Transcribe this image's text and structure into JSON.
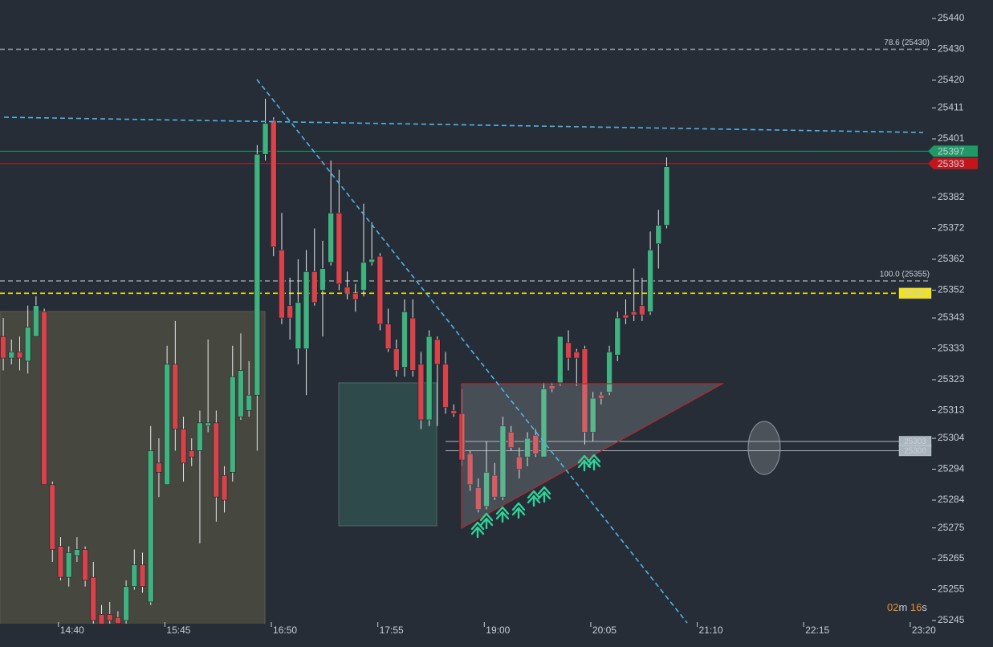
{
  "chart_data": {
    "type": "candlestick",
    "x": [
      838,
      843,
      848,
      853,
      858,
      863,
      868,
      873,
      878,
      883,
      888,
      893,
      898,
      903,
      908,
      913,
      918,
      923,
      928,
      933,
      938,
      943,
      948,
      953,
      958,
      963,
      968,
      973,
      978,
      983,
      988,
      993,
      998,
      1003,
      1008,
      1013,
      1018,
      1023,
      1028,
      1033,
      1038,
      1043,
      1048,
      1053,
      1058,
      1063,
      1068,
      1073,
      1078,
      1083,
      1088,
      1093,
      1098,
      1103,
      1108,
      1113,
      1118,
      1123,
      1128,
      1133,
      1138,
      1143,
      1148,
      1153,
      1158,
      1163,
      1168,
      1173,
      1178,
      1183,
      1188,
      1193,
      1198,
      1203,
      1208,
      1213,
      1218,
      1223,
      1228,
      1233,
      1238,
      1243
    ],
    "open": [
      25337,
      25330,
      25332,
      25329,
      25337,
      25345,
      25289,
      25269,
      25259,
      25266,
      25268,
      25259,
      25247,
      25247,
      25246,
      25245,
      25256,
      25263,
      25251,
      25296,
      25289,
      25328,
      25307,
      25300,
      25300,
      25308,
      25309,
      25292,
      25293,
      25311,
      25313,
      25318,
      25396,
      25407,
      25365,
      25347,
      25333,
      25333,
      25358,
      25352,
      25361,
      25377,
      25353,
      25351,
      25352,
      25361,
      25363,
      25341,
      25333,
      25327,
      25343,
      25328,
      25310,
      25336,
      25328,
      25313,
      25312,
      25299,
      25288,
      25282,
      25292,
      25285,
      25306,
      25298,
      25298,
      25305,
      25298,
      25321,
      25322,
      25335,
      25332,
      25333,
      25306,
      25318,
      25319,
      25331,
      25344,
      25345,
      25347,
      25345,
      25367,
      25373
    ],
    "high": [
      25343,
      25336,
      25337,
      25347,
      25350,
      25346,
      25290,
      25272,
      25269,
      25272,
      25269,
      25264,
      25250,
      25251,
      25248,
      25258,
      25268,
      25267,
      25308,
      25304,
      25334,
      25342,
      25311,
      25304,
      25313,
      25336,
      25313,
      25295,
      25334,
      25338,
      25329,
      25399,
      25414,
      25408,
      25377,
      25356,
      25362,
      25365,
      25372,
      25368,
      25394,
      25391,
      25358,
      25354,
      25380,
      25374,
      25364,
      25346,
      25336,
      25349,
      25349,
      25332,
      25339,
      25337,
      25332,
      25315,
      25320,
      25300,
      25291,
      25303,
      25296,
      25311,
      25308,
      25301,
      25306,
      25307,
      25322,
      25322,
      25337,
      25339,
      25333,
      25334,
      25319,
      25319,
      25334,
      25345,
      25349,
      25359,
      25356,
      25371,
      25378,
      25395
    ],
    "low": [
      25326,
      25328,
      25326,
      25325,
      25337,
      25289,
      25264,
      25258,
      25256,
      25264,
      25256,
      25244,
      25236,
      25244,
      25243,
      25244,
      25255,
      25254,
      25250,
      25285,
      25289,
      25300,
      25290,
      25295,
      25270,
      25306,
      25277,
      25280,
      25290,
      25310,
      25311,
      25300,
      25394,
      25363,
      25341,
      25336,
      25328,
      25318,
      25347,
      25337,
      25360,
      25352,
      25349,
      25345,
      25350,
      25360,
      25339,
      25332,
      25324,
      25324,
      25324,
      25307,
      25308,
      25308,
      25312,
      25311,
      25295,
      25287,
      25280,
      25281,
      25284,
      25284,
      25300,
      25291,
      25295,
      25298,
      25298,
      25319,
      25321,
      25326,
      25321,
      25302,
      25303,
      25315,
      25318,
      25329,
      25341,
      25342,
      25342,
      25344,
      25359,
      25372
    ],
    "close": [
      25330,
      25332,
      25330,
      25340,
      25347,
      25289,
      25268,
      25259,
      25267,
      25268,
      25258,
      25245,
      25240,
      25245,
      25244,
      25256,
      25263,
      25256,
      25300,
      25293,
      25328,
      25307,
      25296,
      25298,
      25309,
      25309,
      25285,
      25284,
      25324,
      25326,
      25318,
      25396,
      25406,
      25366,
      25343,
      25343,
      25348,
      25358,
      25348,
      25359,
      25377,
      25354,
      25351,
      25349,
      25361,
      25362,
      25341,
      25333,
      25326,
      25345,
      25326,
      25310,
      25337,
      25328,
      25314,
      25312,
      25297,
      25289,
      25281,
      25293,
      25285,
      25308,
      25301,
      25294,
      25304,
      25299,
      25320,
      25320,
      25337,
      25330,
      25330,
      25306,
      25317,
      25317,
      25332,
      25343,
      25343,
      25344,
      25344,
      25365,
      25373,
      25392
    ],
    "up_color": "#3fb27f",
    "down_color": "#d6434a",
    "xlim": [
      836,
      1404
    ],
    "ylim": [
      25245,
      25440
    ],
    "xticks": [
      {
        "value": 880,
        "label": "14:40"
      },
      {
        "value": 945,
        "label": "15:45"
      },
      {
        "value": 1010,
        "label": "16:50"
      },
      {
        "value": 1075,
        "label": "17:55"
      },
      {
        "value": 1140,
        "label": "19:00"
      },
      {
        "value": 1205,
        "label": "20:05"
      },
      {
        "value": 1270,
        "label": "21:10"
      },
      {
        "value": 1335,
        "label": "22:15"
      },
      {
        "value": 1400,
        "label": "23:20"
      }
    ],
    "yticks": [
      25440,
      25430,
      25420,
      25411,
      25401,
      25382,
      25372,
      25362,
      25352,
      25343,
      25333,
      25323,
      25313,
      25304,
      25294,
      25284,
      25275,
      25265,
      25255,
      25245
    ],
    "levels": [
      {
        "value": 25430,
        "label": "78.6 (25430)",
        "color": "#8e949b",
        "style": "dashed"
      },
      {
        "value": 25355,
        "label": "100.0 (25355)",
        "color": "#8e949b",
        "style": "dashed"
      },
      {
        "value": 25351,
        "color": "#f2e21a",
        "style": "dashed",
        "tag": "inside",
        "tag_text": "#111111"
      },
      {
        "value": 25397,
        "color": "#1f9a66",
        "style": "solid",
        "tag": "axis",
        "tag_text": "#ffffff"
      },
      {
        "value": 25393,
        "color": "#c3161c",
        "style": "solid",
        "tag": "axis",
        "tag_text": "#ffffff"
      },
      {
        "value": 25303,
        "color": "#a9b4be",
        "style": "range",
        "tag": "inside",
        "tag_text": "#333333"
      },
      {
        "value": 25300,
        "color": "#a9b4be",
        "style": "range",
        "tag": "inside",
        "tag_text": "#333333"
      }
    ],
    "countdown": [
      {
        "text": "02",
        "color": "#e8912d"
      },
      {
        "text": "m ",
        "color": "#c9ced6"
      },
      {
        "text": "16",
        "color": "#e8912d"
      },
      {
        "text": "s",
        "color": "#c9ced6"
      }
    ]
  }
}
